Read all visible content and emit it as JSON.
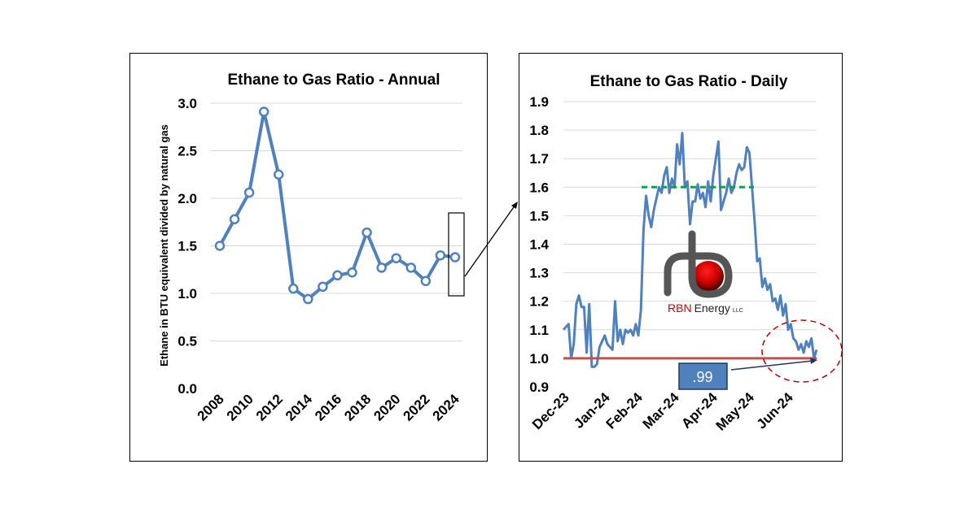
{
  "chart_data": [
    {
      "type": "line",
      "title": "Ethane to Gas Ratio - Annual",
      "ylabel": "Ethane in BTU equivalent divided by natural gas",
      "xlabel": "",
      "x": [
        2008,
        2009,
        2010,
        2011,
        2012,
        2013,
        2014,
        2015,
        2016,
        2017,
        2018,
        2019,
        2020,
        2021,
        2022,
        2023,
        2024
      ],
      "values": [
        1.5,
        1.78,
        2.06,
        2.91,
        2.25,
        1.05,
        0.94,
        1.07,
        1.19,
        1.22,
        1.64,
        1.27,
        1.37,
        1.27,
        1.13,
        1.4,
        1.38
      ],
      "ylim": [
        0,
        3.0
      ],
      "yticks": [
        "0.0",
        "0.5",
        "1.0",
        "1.5",
        "2.0",
        "2.5",
        "3.0"
      ],
      "xticks": [
        "2008",
        "2010",
        "2012",
        "2014",
        "2016",
        "2018",
        "2020",
        "2022",
        "2024"
      ],
      "grid": true,
      "color": "#4f81bd",
      "markers": "open-circle"
    },
    {
      "type": "line",
      "title": "Ethane to Gas Ratio - Daily",
      "xlabel": "",
      "ylabel": "",
      "values": [
        1.1,
        1.11,
        1.12,
        1.0,
        1.05,
        1.19,
        1.22,
        1.18,
        1.18,
        1.02,
        1.19,
        0.97,
        0.97,
        0.98,
        1.04,
        1.06,
        1.08,
        1.05,
        1.04,
        1.03,
        1.2,
        1.06,
        1.1,
        1.05,
        1.1,
        1.09,
        1.1,
        1.08,
        1.12,
        1.08,
        1.17,
        1.45,
        1.57,
        1.5,
        1.46,
        1.52,
        1.56,
        1.6,
        1.58,
        1.64,
        1.67,
        1.58,
        1.63,
        1.6,
        1.75,
        1.68,
        1.79,
        1.6,
        1.62,
        1.47,
        1.55,
        1.55,
        1.61,
        1.56,
        1.58,
        1.53,
        1.62,
        1.55,
        1.64,
        1.7,
        1.76,
        1.52,
        1.55,
        1.58,
        1.63,
        1.58,
        1.6,
        1.65,
        1.68,
        1.66,
        1.67,
        1.74,
        1.72,
        1.6,
        1.48,
        1.34,
        1.35,
        1.25,
        1.28,
        1.24,
        1.26,
        1.2,
        1.21,
        1.17,
        1.22,
        1.15,
        1.19,
        1.1,
        1.12,
        1.07,
        1.06,
        1.03,
        1.05,
        1.02,
        1.06,
        1.04,
        1.07,
        1.0,
        1.03
      ],
      "xticks": [
        "Dec-23",
        "Jan-24",
        "Feb-24",
        "Mar-24",
        "Apr-24",
        "May-24",
        "Jun-24"
      ],
      "ylim": [
        0.9,
        1.9
      ],
      "yticks": [
        "0.9",
        "1.0",
        "1.1",
        "1.2",
        "1.3",
        "1.4",
        "1.5",
        "1.6",
        "1.7",
        "1.8",
        "1.9"
      ],
      "grid": true,
      "color": "#4f81bd",
      "reference_lines": [
        {
          "value": 1.6,
          "color": "#00a651",
          "style": "dashed"
        },
        {
          "value": 1.0,
          "color": "#c0504d",
          "style": "solid"
        }
      ],
      "annotation": {
        "text": ".99",
        "color": "#4f81bd"
      }
    }
  ],
  "logo": {
    "text_red": "RBN",
    "text_dark": "Energy",
    "suffix": "LLC"
  }
}
